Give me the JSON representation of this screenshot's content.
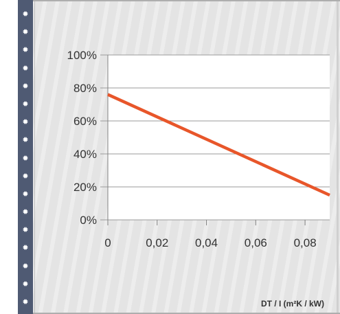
{
  "rail": {
    "icon": "gear-icon",
    "count": 17,
    "color": "#4f5a73"
  },
  "colors": {
    "line": "#e8562a",
    "plot_bg": "#ffffff",
    "grid": "#9a9a9a"
  },
  "chart_data": {
    "type": "line",
    "title": "",
    "xlabel": "DT / I (m²K / kW)",
    "ylabel": "",
    "x_ticks": [
      "0",
      "0,02",
      "0,04",
      "0,06",
      "0,08"
    ],
    "y_ticks": [
      "0%",
      "20%",
      "40%",
      "60%",
      "80%",
      "100%"
    ],
    "xlim": [
      0,
      0.09
    ],
    "ylim": [
      0,
      1.0
    ],
    "grid": true,
    "series": [
      {
        "x": [
          0,
          0.09
        ],
        "y": [
          0.76,
          0.15
        ]
      }
    ]
  }
}
